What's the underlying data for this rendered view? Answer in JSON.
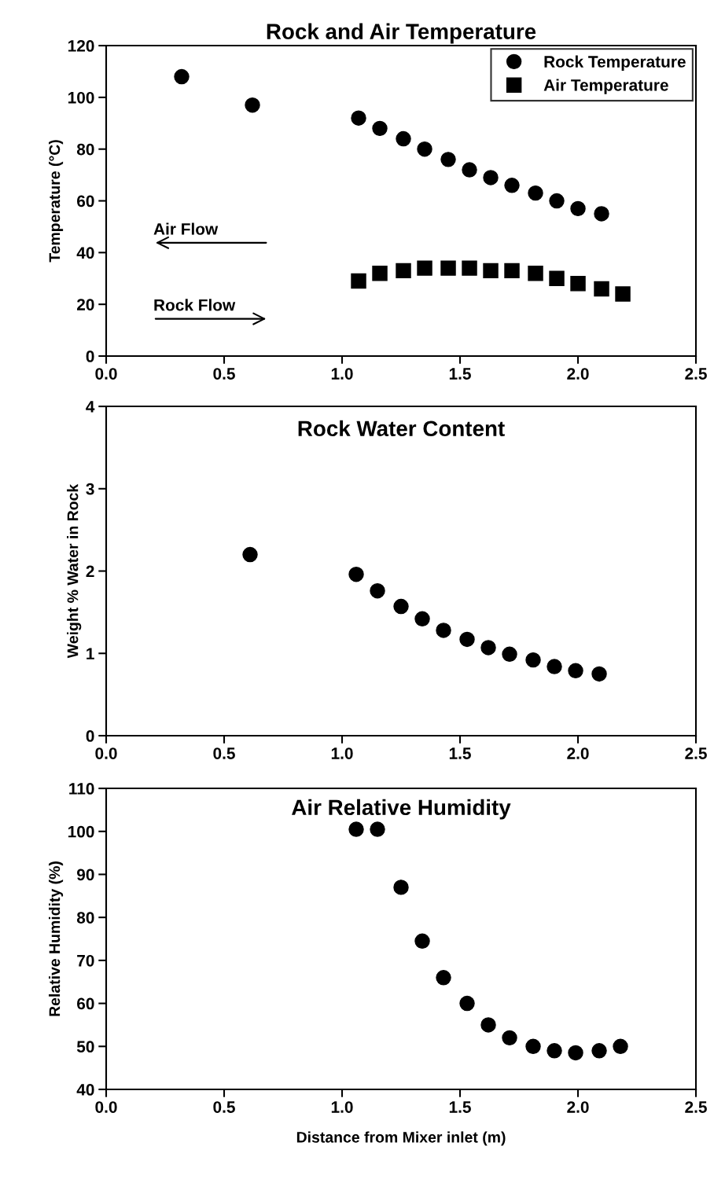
{
  "chart_data": [
    {
      "type": "scatter",
      "title": "Rock and Air Temperature",
      "ylabel": "Temperature (°C)",
      "marker": "circle",
      "legend": "top right",
      "grid": false,
      "xlim": [
        0,
        2.5
      ],
      "xticks": [
        {
          "value": 0,
          "label": "0.0"
        },
        {
          "value": 0.5,
          "label": "0.5"
        },
        {
          "value": 1,
          "label": "1.0"
        },
        {
          "value": 1.5,
          "label": "1.5"
        },
        {
          "value": 2,
          "label": "2.0"
        },
        {
          "value": 2.5,
          "label": "2.5"
        }
      ],
      "ylim": [
        0,
        120
      ],
      "yticks": [
        0,
        20,
        40,
        60,
        80,
        100,
        120
      ],
      "series": [
        {
          "name": "Rock Temperature",
          "color": "#000000",
          "marker": "circle",
          "x": [
            0.32,
            0.62,
            1.07,
            1.16,
            1.26,
            1.35,
            1.45,
            1.54,
            1.63,
            1.72,
            1.82,
            1.91,
            2.0,
            2.1
          ],
          "values": [
            108,
            97,
            92,
            88,
            84,
            80,
            76,
            72,
            69,
            66,
            63,
            60,
            57,
            55
          ]
        },
        {
          "name": "Air Temperature",
          "color": "#000000",
          "marker": "square",
          "x": [
            1.07,
            1.16,
            1.26,
            1.35,
            1.45,
            1.54,
            1.63,
            1.72,
            1.82,
            1.91,
            2.0,
            2.1,
            2.19
          ],
          "values": [
            29,
            32,
            33,
            34,
            34,
            34,
            33,
            33,
            32,
            30,
            28,
            26,
            24
          ]
        }
      ],
      "annotations": [
        "Air Flow",
        "Rock Flow"
      ]
    },
    {
      "type": "scatter",
      "title": "Rock Water Content",
      "ylabel": "Weight % Water in Rock",
      "marker": "circle",
      "grid": false,
      "xlim": [
        0,
        2.5
      ],
      "xticks": [
        {
          "value": 0,
          "label": "0.0"
        },
        {
          "value": 0.5,
          "label": "0.5"
        },
        {
          "value": 1,
          "label": "1.0"
        },
        {
          "value": 1.5,
          "label": "1.5"
        },
        {
          "value": 2,
          "label": "2.0"
        },
        {
          "value": 2.5,
          "label": "2.5"
        }
      ],
      "ylim": [
        0,
        4
      ],
      "yticks": [
        0,
        1,
        2,
        3,
        4
      ],
      "series": [
        {
          "color": "#000000",
          "x": [
            0.61,
            1.06,
            1.15,
            1.25,
            1.34,
            1.43,
            1.53,
            1.62,
            1.71,
            1.81,
            1.9,
            1.99,
            2.09
          ],
          "values": [
            2.2,
            1.96,
            1.76,
            1.57,
            1.42,
            1.28,
            1.17,
            1.07,
            0.99,
            0.92,
            0.84,
            0.79,
            0.75
          ]
        }
      ]
    },
    {
      "type": "scatter",
      "title": "Air Relative Humidity",
      "xlabel": "Distance from Mixer inlet (m)",
      "ylabel": "Relative Humidity (%)",
      "marker": "circle",
      "grid": false,
      "xlim": [
        0,
        2.5
      ],
      "xticks": [
        {
          "value": 0,
          "label": "0.0"
        },
        {
          "value": 0.5,
          "label": "0.5"
        },
        {
          "value": 1,
          "label": "1.0"
        },
        {
          "value": 1.5,
          "label": "1.5"
        },
        {
          "value": 2,
          "label": "2.0"
        },
        {
          "value": 2.5,
          "label": "2.5"
        }
      ],
      "ylim": [
        40,
        110
      ],
      "yticks": [
        40,
        50,
        60,
        70,
        80,
        90,
        100,
        110
      ],
      "series": [
        {
          "color": "#000000",
          "x": [
            1.06,
            1.15,
            1.25,
            1.34,
            1.43,
            1.53,
            1.62,
            1.71,
            1.81,
            1.9,
            1.99,
            2.09,
            2.18
          ],
          "values": [
            100.5,
            100.5,
            87,
            74.5,
            66,
            60,
            55,
            52,
            50,
            49,
            48.5,
            49,
            50
          ]
        }
      ]
    }
  ]
}
